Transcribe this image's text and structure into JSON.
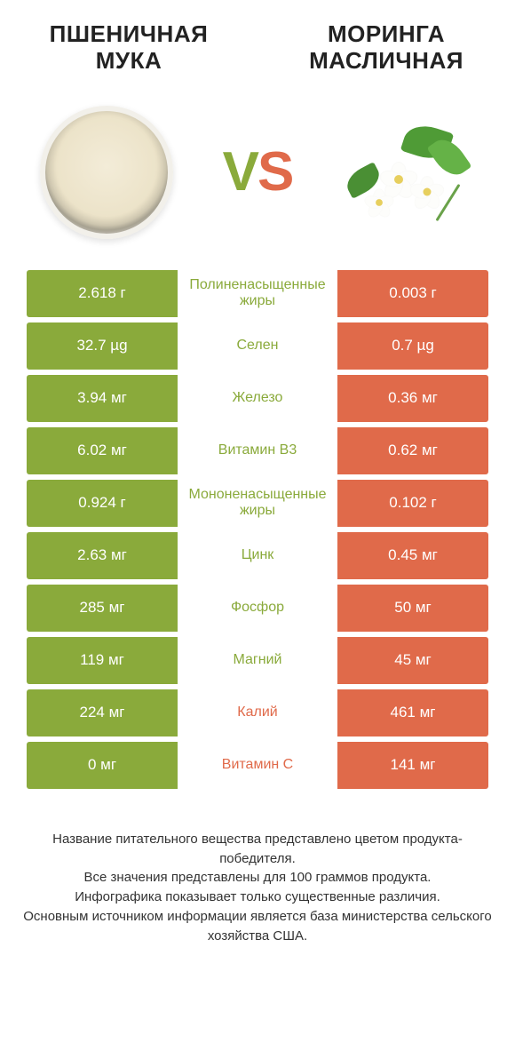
{
  "colors": {
    "left": "#8aaa3b",
    "right": "#e06a4a",
    "mid_bg": "#ffffff"
  },
  "titles": {
    "left": "ПШЕНИЧНАЯ МУКА",
    "right": "МОРИНГА МАСЛИЧНАЯ"
  },
  "vs": {
    "v": "V",
    "s": "S"
  },
  "rows": [
    {
      "left": "2.618 г",
      "label": "Полиненасыщенные жиры",
      "right": "0.003 г",
      "winner": "left"
    },
    {
      "left": "32.7 µg",
      "label": "Селен",
      "right": "0.7 µg",
      "winner": "left"
    },
    {
      "left": "3.94 мг",
      "label": "Железо",
      "right": "0.36 мг",
      "winner": "left"
    },
    {
      "left": "6.02 мг",
      "label": "Витамин B3",
      "right": "0.62 мг",
      "winner": "left"
    },
    {
      "left": "0.924 г",
      "label": "Мононенасыщенные жиры",
      "right": "0.102 г",
      "winner": "left"
    },
    {
      "left": "2.63 мг",
      "label": "Цинк",
      "right": "0.45 мг",
      "winner": "left"
    },
    {
      "left": "285 мг",
      "label": "Фосфор",
      "right": "50 мг",
      "winner": "left"
    },
    {
      "left": "119 мг",
      "label": "Магний",
      "right": "45 мг",
      "winner": "left"
    },
    {
      "left": "224 мг",
      "label": "Калий",
      "right": "461 мг",
      "winner": "right"
    },
    {
      "left": "0 мг",
      "label": "Витамин C",
      "right": "141 мг",
      "winner": "right"
    }
  ],
  "footer": {
    "l1": "Название питательного вещества представлено цветом продукта-победителя.",
    "l2": "Все значения представлены для 100 граммов продукта.",
    "l3": "Инфографика показывает только существенные различия.",
    "l4": "Основным источником информации является база министерства сельского хозяйства США."
  }
}
